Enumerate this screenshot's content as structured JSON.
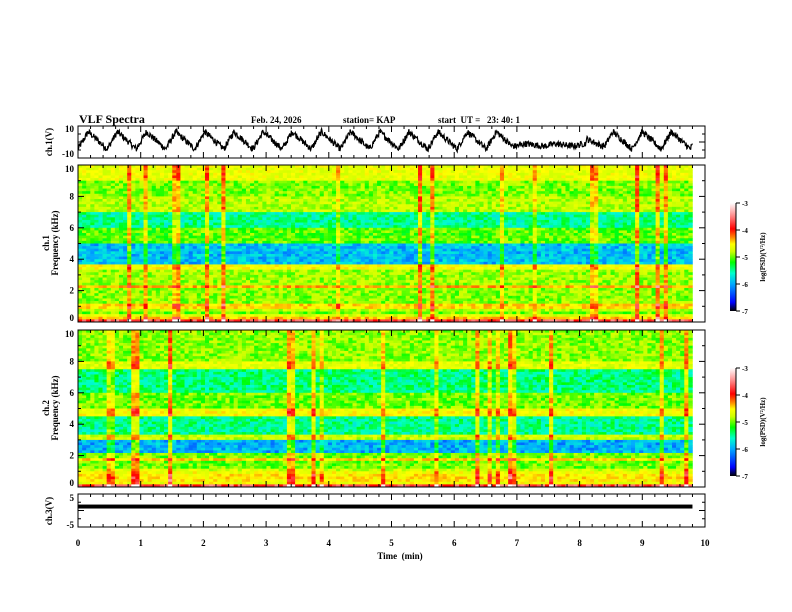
{
  "header": {
    "title": "VLF Spectra",
    "date": "Feb. 24, 2026",
    "station": "station= KAP",
    "start": "start  UT =   23: 40: 1"
  },
  "colors": {
    "trace": "#000000",
    "background": "#ffffff",
    "colormap": [
      "#000000",
      "#0000ff",
      "#00aaff",
      "#00ffcc",
      "#00ff00",
      "#aaff00",
      "#ffff00",
      "#ff8800",
      "#ff0000",
      "#ff8888",
      "#ffffff"
    ]
  },
  "chart_data": [
    {
      "type": "line",
      "name": "ch1-voltage",
      "ylabel": "ch.1(V)",
      "ylim": [
        -10,
        10
      ],
      "yticks": [
        "10",
        "-10"
      ],
      "xlim": [
        0,
        10
      ],
      "description": "triangular oscillating waveform, ~15 periods 0-7 min, flattening 7-8 min, resumed oscillation 8-9.8 min",
      "x_end": 9.8
    },
    {
      "type": "heatmap",
      "name": "ch1-spectrogram",
      "ylabel_top": "ch.1",
      "ylabel": "Frequency (kHz)",
      "ylim": [
        0,
        10
      ],
      "yticks": [
        "0",
        "2",
        "4",
        "6",
        "8",
        "10"
      ],
      "xlim": [
        0,
        10
      ],
      "x_end": 9.8,
      "colorbar": {
        "label": "log(PSD)(V²/Hz)",
        "range": [
          -7,
          -3
        ],
        "ticks": [
          "-3",
          "-4",
          "-5",
          "-6",
          "-7"
        ]
      }
    },
    {
      "type": "heatmap",
      "name": "ch2-spectrogram",
      "ylabel_top": "ch.2",
      "ylabel": "Frequency (kHz)",
      "ylim": [
        0,
        10
      ],
      "yticks": [
        "0",
        "2",
        "4",
        "6",
        "8",
        "10"
      ],
      "xlim": [
        0,
        10
      ],
      "x_end": 9.8,
      "colorbar": {
        "label": "log(PSD)(V²/Hz)",
        "range": [
          -7,
          -3
        ],
        "ticks": [
          "-3",
          "-4",
          "-5",
          "-6",
          "-7"
        ]
      }
    },
    {
      "type": "line",
      "name": "ch3-voltage",
      "ylabel": "ch.3(V)",
      "ylim": [
        -5,
        5
      ],
      "yticks": [
        "5",
        "-5"
      ],
      "xlim": [
        0,
        10
      ],
      "x_end": 9.8,
      "description": "nearly constant thick band near +1 V"
    }
  ],
  "xaxis": {
    "label": "Time  (min)",
    "ticks": [
      "0",
      "1",
      "2",
      "3",
      "4",
      "5",
      "6",
      "7",
      "8",
      "9",
      "10"
    ]
  }
}
